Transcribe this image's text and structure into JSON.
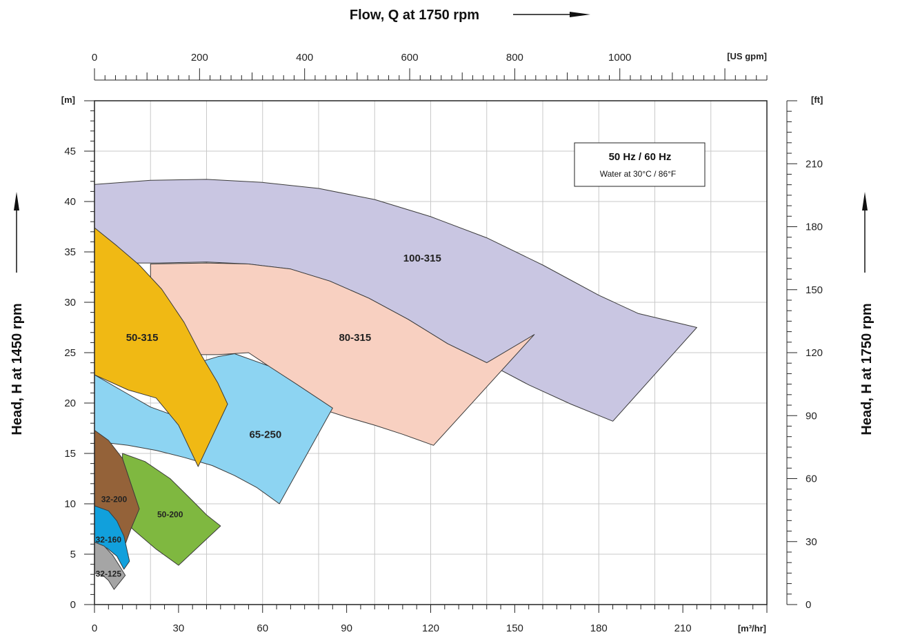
{
  "chart_data": {
    "type": "area",
    "title": "Flow, Q at 1750 rpm",
    "xlabel": "[m³/hr]",
    "ylabel": "Head, H at 1450 rpm",
    "y2label": "Head, H at 1750 rpm",
    "top_axis_unit": "[US gpm]",
    "left_unit": "[m]",
    "right_unit": "[ft]",
    "xlim": [
      0,
      240
    ],
    "ylim": [
      0,
      50
    ],
    "x_ticks": [
      "0",
      "30",
      "60",
      "90",
      "120",
      "150",
      "180",
      "210"
    ],
    "y_ticks": [
      "0",
      "5",
      "10",
      "15",
      "20",
      "25",
      "30",
      "35",
      "40",
      "45"
    ],
    "top_ticks": [
      "0",
      "200",
      "400",
      "600",
      "800",
      "1000"
    ],
    "top_tick_values": [
      0,
      200,
      400,
      600,
      800,
      1000
    ],
    "top_max": 1280,
    "right_ticks": [
      "0",
      "30",
      "60",
      "90",
      "120",
      "150",
      "180",
      "210"
    ],
    "right_tick_values": [
      0,
      30,
      60,
      90,
      120,
      150,
      180,
      210
    ],
    "right_max": 240,
    "grid": true,
    "legend": {
      "title": "50 Hz / 60 Hz",
      "subtitle": "Water at 30°C / 86°F",
      "placement": "top-right"
    },
    "regions": [
      {
        "name": "100-315",
        "color": "#c9c6e2",
        "label_x": 117,
        "label_y": 34.4,
        "label_size": "normal",
        "points": [
          [
            0,
            41.7
          ],
          [
            20,
            42.1
          ],
          [
            40,
            42.2
          ],
          [
            60,
            41.9
          ],
          [
            80,
            41.3
          ],
          [
            100,
            40.2
          ],
          [
            120,
            38.5
          ],
          [
            140,
            36.4
          ],
          [
            160,
            33.7
          ],
          [
            180,
            30.7
          ],
          [
            194,
            28.9
          ],
          [
            215,
            27.5
          ],
          [
            185,
            18.2
          ],
          [
            170,
            19.9
          ],
          [
            155,
            21.8
          ],
          [
            140,
            24.0
          ],
          [
            126,
            25.9
          ],
          [
            112,
            28.3
          ],
          [
            98,
            30.4
          ],
          [
            84,
            32.1
          ],
          [
            70,
            33.3
          ],
          [
            55,
            33.8
          ],
          [
            40,
            34.0
          ],
          [
            23,
            33.9
          ],
          [
            0,
            33.9
          ]
        ]
      },
      {
        "name": "80-315",
        "color": "#f8d0c1",
        "label_x": 93,
        "label_y": 26.5,
        "label_size": "normal",
        "points": [
          [
            20,
            33.8
          ],
          [
            40,
            33.9
          ],
          [
            55,
            33.8
          ],
          [
            70,
            33.3
          ],
          [
            84,
            32.1
          ],
          [
            98,
            30.4
          ],
          [
            112,
            28.3
          ],
          [
            126,
            25.9
          ],
          [
            140,
            24.0
          ],
          [
            157,
            26.8
          ],
          [
            121,
            15.8
          ],
          [
            110,
            16.9
          ],
          [
            100,
            17.8
          ],
          [
            90,
            18.6
          ],
          [
            80,
            19.5
          ],
          [
            74,
            20.4
          ],
          [
            68,
            21.9
          ],
          [
            62,
            23.7
          ],
          [
            55,
            25.0
          ],
          [
            44,
            24.8
          ],
          [
            20,
            24.8
          ]
        ]
      },
      {
        "name": "65-250",
        "color": "#8dd4f2",
        "label_x": 61,
        "label_y": 16.9,
        "label_size": "normal",
        "points": [
          [
            0,
            22.8
          ],
          [
            10,
            21.2
          ],
          [
            20,
            19.6
          ],
          [
            30,
            18.6
          ],
          [
            38,
            24.1
          ],
          [
            44,
            24.6
          ],
          [
            50,
            24.9
          ],
          [
            62,
            23.7
          ],
          [
            72,
            21.9
          ],
          [
            85,
            19.5
          ],
          [
            66,
            10.0
          ],
          [
            58,
            11.6
          ],
          [
            50,
            12.8
          ],
          [
            42,
            13.8
          ],
          [
            32,
            14.6
          ],
          [
            22,
            15.3
          ],
          [
            12,
            15.8
          ],
          [
            0,
            16.2
          ]
        ]
      },
      {
        "name": "50-315",
        "color": "#f0b914",
        "label_x": 17,
        "label_y": 26.5,
        "label_size": "normal",
        "points": [
          [
            0,
            37.4
          ],
          [
            8,
            35.6
          ],
          [
            16,
            33.7
          ],
          [
            24,
            31.3
          ],
          [
            32,
            28.0
          ],
          [
            38,
            24.8
          ],
          [
            44,
            22.0
          ],
          [
            47.5,
            19.9
          ],
          [
            37,
            13.7
          ],
          [
            30,
            17.8
          ],
          [
            22,
            20.5
          ],
          [
            12,
            21.3
          ],
          [
            0,
            22.8
          ]
        ]
      },
      {
        "name": "50-200",
        "color": "#7fb840",
        "label_x": 27,
        "label_y": 9.0,
        "label_size": "small",
        "points": [
          [
            10,
            15.0
          ],
          [
            18,
            14.2
          ],
          [
            27,
            12.5
          ],
          [
            35,
            10.3
          ],
          [
            40,
            8.9
          ],
          [
            45,
            7.8
          ],
          [
            30,
            3.9
          ],
          [
            22,
            5.5
          ],
          [
            14,
            7.4
          ],
          [
            10,
            8.5
          ]
        ]
      },
      {
        "name": "32-200",
        "color": "#946239",
        "label_x": 7,
        "label_y": 10.5,
        "label_size": "small",
        "points": [
          [
            0,
            17.3
          ],
          [
            5,
            16.3
          ],
          [
            10,
            14.5
          ],
          [
            13,
            12.0
          ],
          [
            16,
            9.5
          ],
          [
            13,
            7.5
          ],
          [
            11,
            6.0
          ],
          [
            9,
            6.5
          ],
          [
            5,
            8.5
          ],
          [
            0,
            9.8
          ]
        ]
      },
      {
        "name": "32-160",
        "color": "#11a0dc",
        "label_x": 5,
        "label_y": 6.5,
        "label_size": "small",
        "points": [
          [
            0,
            9.8
          ],
          [
            5,
            9.3
          ],
          [
            8,
            8.3
          ],
          [
            10.5,
            6.8
          ],
          [
            12.5,
            4.3
          ],
          [
            10.5,
            3.5
          ],
          [
            8,
            4.8
          ],
          [
            4.5,
            5.6
          ],
          [
            0,
            6.0
          ]
        ]
      },
      {
        "name": "32-125",
        "color": "#a5a5a5",
        "label_x": 5,
        "label_y": 3.1,
        "label_size": "small",
        "points": [
          [
            0,
            6.2
          ],
          [
            3.5,
            5.8
          ],
          [
            6.5,
            4.9
          ],
          [
            9,
            3.8
          ],
          [
            11,
            2.9
          ],
          [
            7,
            1.5
          ],
          [
            5,
            2.4
          ],
          [
            3,
            2.9
          ],
          [
            0,
            3.1
          ]
        ]
      }
    ]
  }
}
